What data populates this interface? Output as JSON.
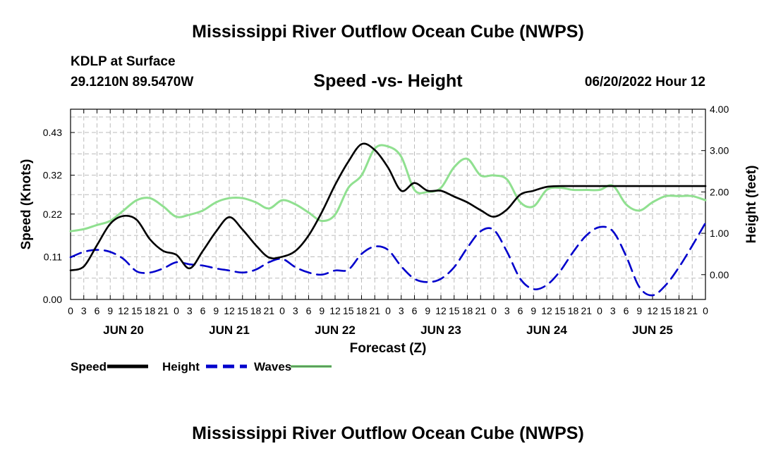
{
  "header": {
    "title": "Mississippi River Outflow Ocean Cube (NWPS)",
    "station": "KDLP at Surface",
    "coords": "29.1210N  89.5470W",
    "subtitle": "Speed -vs- Height",
    "date": "06/20/2022 Hour 12",
    "footer_title": "Mississippi River Outflow Ocean Cube (NWPS)"
  },
  "chart_data": {
    "type": "line",
    "title": "Speed -vs- Height",
    "xlabel": "Forecast (Z)",
    "ylabel_left": "Speed (Knots)",
    "ylabel_right": "Height (feet)",
    "x_range": [
      0,
      144
    ],
    "y_left_range": [
      0,
      0.49
    ],
    "y_left_ticks": [
      0,
      0.11,
      0.22,
      0.32,
      0.43
    ],
    "y_left_tick_labels": [
      "0.00",
      "0.11",
      "0.22",
      "0.32",
      "0.43"
    ],
    "y_right_range": [
      -0.6,
      4.0
    ],
    "y_right_ticks": [
      0,
      1,
      2,
      3,
      4
    ],
    "y_right_tick_labels": [
      "0.00",
      "1.00",
      "2.00",
      "3.00",
      "4.00"
    ],
    "x_tick_hours": [
      "0",
      "3",
      "6",
      "9",
      "12",
      "15",
      "18",
      "21",
      "0",
      "3",
      "6",
      "9",
      "12",
      "15",
      "18",
      "21",
      "0",
      "3",
      "6",
      "9",
      "12",
      "15",
      "18",
      "21",
      "0",
      "3",
      "6",
      "9",
      "12",
      "15",
      "18",
      "21",
      "0",
      "3",
      "6",
      "9",
      "12",
      "15",
      "18",
      "21",
      "0",
      "3",
      "6",
      "9",
      "12",
      "15",
      "18",
      "21",
      "0"
    ],
    "x_tick_display": [
      "0",
      "3",
      "6",
      "9",
      "12",
      "15",
      "18",
      "21",
      "0",
      "3",
      "6",
      "9",
      "12",
      "15",
      "18",
      "21",
      "0",
      "3",
      "6",
      "9",
      "12",
      "15",
      "18",
      "21",
      "0",
      "3",
      "6",
      "9",
      "12",
      "15",
      "18",
      "21",
      "0",
      "3",
      "6",
      "9",
      "12",
      "15",
      "18",
      "21",
      "0",
      "3",
      "6",
      "9",
      "12",
      "15",
      "18",
      "21",
      "0"
    ],
    "day_labels": [
      {
        "label": "JUN 20",
        "hour": 12
      },
      {
        "label": "JUN 21",
        "hour": 36
      },
      {
        "label": "JUN 22",
        "hour": 60
      },
      {
        "label": "JUN 23",
        "hour": 84
      },
      {
        "label": "JUN 24",
        "hour": 108
      },
      {
        "label": "JUN 25",
        "hour": 132
      }
    ],
    "series": [
      {
        "name": "Speed",
        "axis": "left",
        "color": "#000000",
        "dash": "solid",
        "points": [
          [
            0,
            0.075
          ],
          [
            3,
            0.085
          ],
          [
            6,
            0.14
          ],
          [
            9,
            0.195
          ],
          [
            12,
            0.215
          ],
          [
            15,
            0.205
          ],
          [
            18,
            0.155
          ],
          [
            21,
            0.125
          ],
          [
            24,
            0.115
          ],
          [
            27,
            0.08
          ],
          [
            30,
            0.125
          ],
          [
            33,
            0.175
          ],
          [
            36,
            0.212
          ],
          [
            39,
            0.18
          ],
          [
            42,
            0.14
          ],
          [
            45,
            0.108
          ],
          [
            48,
            0.11
          ],
          [
            51,
            0.125
          ],
          [
            54,
            0.165
          ],
          [
            57,
            0.225
          ],
          [
            60,
            0.295
          ],
          [
            63,
            0.355
          ],
          [
            66,
            0.4
          ],
          [
            69,
            0.385
          ],
          [
            72,
            0.34
          ],
          [
            75,
            0.28
          ],
          [
            78,
            0.3
          ],
          [
            81,
            0.28
          ],
          [
            84,
            0.28
          ],
          [
            87,
            0.265
          ],
          [
            90,
            0.25
          ],
          [
            93,
            0.23
          ],
          [
            96,
            0.213
          ],
          [
            99,
            0.232
          ],
          [
            102,
            0.27
          ],
          [
            105,
            0.28
          ],
          [
            108,
            0.29
          ],
          [
            111,
            0.292
          ],
          [
            114,
            0.292
          ],
          [
            117,
            0.292
          ],
          [
            120,
            0.292
          ],
          [
            123,
            0.292
          ],
          [
            126,
            0.292
          ],
          [
            129,
            0.292
          ],
          [
            132,
            0.292
          ],
          [
            135,
            0.292
          ],
          [
            138,
            0.292
          ],
          [
            141,
            0.292
          ],
          [
            144,
            0.292
          ]
        ]
      },
      {
        "name": "Height",
        "axis": "right",
        "color": "#0000cc",
        "dash": "dashed",
        "points": [
          [
            0,
            0.42
          ],
          [
            3,
            0.55
          ],
          [
            6,
            0.6
          ],
          [
            9,
            0.55
          ],
          [
            12,
            0.38
          ],
          [
            15,
            0.08
          ],
          [
            18,
            0.05
          ],
          [
            21,
            0.15
          ],
          [
            24,
            0.3
          ],
          [
            27,
            0.25
          ],
          [
            30,
            0.22
          ],
          [
            33,
            0.15
          ],
          [
            36,
            0.1
          ],
          [
            39,
            0.05
          ],
          [
            42,
            0.12
          ],
          [
            45,
            0.3
          ],
          [
            48,
            0.38
          ],
          [
            51,
            0.18
          ],
          [
            54,
            0.05
          ],
          [
            57,
            0.0
          ],
          [
            60,
            0.1
          ],
          [
            63,
            0.12
          ],
          [
            66,
            0.5
          ],
          [
            69,
            0.68
          ],
          [
            72,
            0.6
          ],
          [
            75,
            0.2
          ],
          [
            78,
            -0.1
          ],
          [
            81,
            -0.18
          ],
          [
            84,
            -0.1
          ],
          [
            87,
            0.18
          ],
          [
            90,
            0.65
          ],
          [
            93,
            1.05
          ],
          [
            96,
            1.08
          ],
          [
            99,
            0.55
          ],
          [
            102,
            -0.1
          ],
          [
            105,
            -0.35
          ],
          [
            108,
            -0.25
          ],
          [
            111,
            0.08
          ],
          [
            114,
            0.55
          ],
          [
            117,
            0.95
          ],
          [
            120,
            1.15
          ],
          [
            123,
            1.05
          ],
          [
            126,
            0.45
          ],
          [
            129,
            -0.3
          ],
          [
            132,
            -0.5
          ],
          [
            135,
            -0.25
          ],
          [
            138,
            0.18
          ],
          [
            141,
            0.7
          ],
          [
            144,
            1.25
          ]
        ]
      },
      {
        "name": "Waves",
        "axis": "right",
        "color": "#90e090",
        "dash": "solid",
        "points": [
          [
            0,
            1.05
          ],
          [
            3,
            1.1
          ],
          [
            6,
            1.2
          ],
          [
            9,
            1.3
          ],
          [
            12,
            1.55
          ],
          [
            15,
            1.8
          ],
          [
            18,
            1.85
          ],
          [
            21,
            1.65
          ],
          [
            24,
            1.4
          ],
          [
            27,
            1.45
          ],
          [
            30,
            1.55
          ],
          [
            33,
            1.75
          ],
          [
            36,
            1.85
          ],
          [
            39,
            1.85
          ],
          [
            42,
            1.75
          ],
          [
            45,
            1.6
          ],
          [
            48,
            1.8
          ],
          [
            51,
            1.7
          ],
          [
            54,
            1.5
          ],
          [
            57,
            1.3
          ],
          [
            60,
            1.45
          ],
          [
            63,
            2.1
          ],
          [
            66,
            2.4
          ],
          [
            69,
            3.05
          ],
          [
            72,
            3.1
          ],
          [
            75,
            2.85
          ],
          [
            78,
            2.05
          ],
          [
            81,
            2.0
          ],
          [
            84,
            2.1
          ],
          [
            87,
            2.6
          ],
          [
            90,
            2.8
          ],
          [
            93,
            2.4
          ],
          [
            96,
            2.4
          ],
          [
            99,
            2.3
          ],
          [
            102,
            1.75
          ],
          [
            105,
            1.65
          ],
          [
            108,
            2.05
          ],
          [
            111,
            2.1
          ],
          [
            114,
            2.05
          ],
          [
            117,
            2.05
          ],
          [
            120,
            2.05
          ],
          [
            123,
            2.15
          ],
          [
            126,
            1.7
          ],
          [
            129,
            1.55
          ],
          [
            132,
            1.75
          ],
          [
            135,
            1.9
          ],
          [
            138,
            1.9
          ],
          [
            141,
            1.9
          ],
          [
            144,
            1.8
          ]
        ]
      }
    ],
    "legend": [
      {
        "name": "Speed",
        "color": "#000000",
        "dash": "solid"
      },
      {
        "name": "Height",
        "color": "#0000cc",
        "dash": "dashed"
      },
      {
        "name": "Waves",
        "color": "#90e090",
        "dash": "solid"
      }
    ],
    "grid": true
  }
}
